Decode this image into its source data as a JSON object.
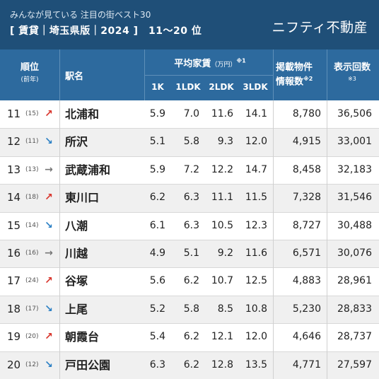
{
  "header": {
    "subtitle": "みんなが見ている 注目の街ベスト30",
    "title": "[ 賃貸｜埼玉県版｜2024 ]　11〜20 位",
    "brand": "ニフティ不動産"
  },
  "columns": {
    "rank": "順位",
    "rank_sub": "(前年)",
    "station": "駅名",
    "rent": "平均家賃",
    "rent_unit": "（万円）",
    "rent_note": "※1",
    "k1": "1K",
    "ldk1": "1LDK",
    "ldk2": "2LDK",
    "ldk3": "3LDK",
    "listings_1": "掲載物件",
    "listings_2": "情報数",
    "listings_note": "※2",
    "views": "表示回数",
    "views_note": "※3"
  },
  "colors": {
    "background": "#1f4f78",
    "header_band": "#2d6a9e",
    "up": "#d8332a",
    "down": "#2a7fc4",
    "same": "#777777"
  },
  "rows": [
    {
      "rank": "11",
      "prev": "(15)",
      "trend": "up",
      "arrow": "↗",
      "station": "北浦和",
      "k1": "5.9",
      "ldk1": "7.0",
      "ldk2": "11.6",
      "ldk3": "14.1",
      "listings": "8,780",
      "views": "36,506"
    },
    {
      "rank": "12",
      "prev": "(11)",
      "trend": "down",
      "arrow": "↘",
      "station": "所沢",
      "k1": "5.1",
      "ldk1": "5.8",
      "ldk2": "9.3",
      "ldk3": "12.0",
      "listings": "4,915",
      "views": "33,001"
    },
    {
      "rank": "13",
      "prev": "(13)",
      "trend": "same",
      "arrow": "→",
      "station": "武蔵浦和",
      "k1": "5.9",
      "ldk1": "7.2",
      "ldk2": "12.2",
      "ldk3": "14.7",
      "listings": "8,458",
      "views": "32,183"
    },
    {
      "rank": "14",
      "prev": "(18)",
      "trend": "up",
      "arrow": "↗",
      "station": "東川口",
      "k1": "6.2",
      "ldk1": "6.3",
      "ldk2": "11.1",
      "ldk3": "11.5",
      "listings": "7,328",
      "views": "31,546"
    },
    {
      "rank": "15",
      "prev": "(14)",
      "trend": "down",
      "arrow": "↘",
      "station": "八潮",
      "k1": "6.1",
      "ldk1": "6.3",
      "ldk2": "10.5",
      "ldk3": "12.3",
      "listings": "8,727",
      "views": "30,488"
    },
    {
      "rank": "16",
      "prev": "(16)",
      "trend": "same",
      "arrow": "→",
      "station": "川越",
      "k1": "4.9",
      "ldk1": "5.1",
      "ldk2": "9.2",
      "ldk3": "11.6",
      "listings": "6,571",
      "views": "30,076"
    },
    {
      "rank": "17",
      "prev": "(24)",
      "trend": "up",
      "arrow": "↗",
      "station": "谷塚",
      "k1": "5.6",
      "ldk1": "6.2",
      "ldk2": "10.7",
      "ldk3": "12.5",
      "listings": "4,883",
      "views": "28,961"
    },
    {
      "rank": "18",
      "prev": "(17)",
      "trend": "down",
      "arrow": "↘",
      "station": "上尾",
      "k1": "5.2",
      "ldk1": "5.8",
      "ldk2": "8.5",
      "ldk3": "10.8",
      "listings": "5,230",
      "views": "28,833"
    },
    {
      "rank": "19",
      "prev": "(20)",
      "trend": "up",
      "arrow": "↗",
      "station": "朝霞台",
      "k1": "5.4",
      "ldk1": "6.2",
      "ldk2": "12.1",
      "ldk3": "12.0",
      "listings": "4,646",
      "views": "28,737"
    },
    {
      "rank": "20",
      "prev": "(12)",
      "trend": "down",
      "arrow": "↘",
      "station": "戸田公園",
      "k1": "6.3",
      "ldk1": "6.2",
      "ldk2": "12.8",
      "ldk3": "13.5",
      "listings": "4,771",
      "views": "27,597"
    }
  ]
}
